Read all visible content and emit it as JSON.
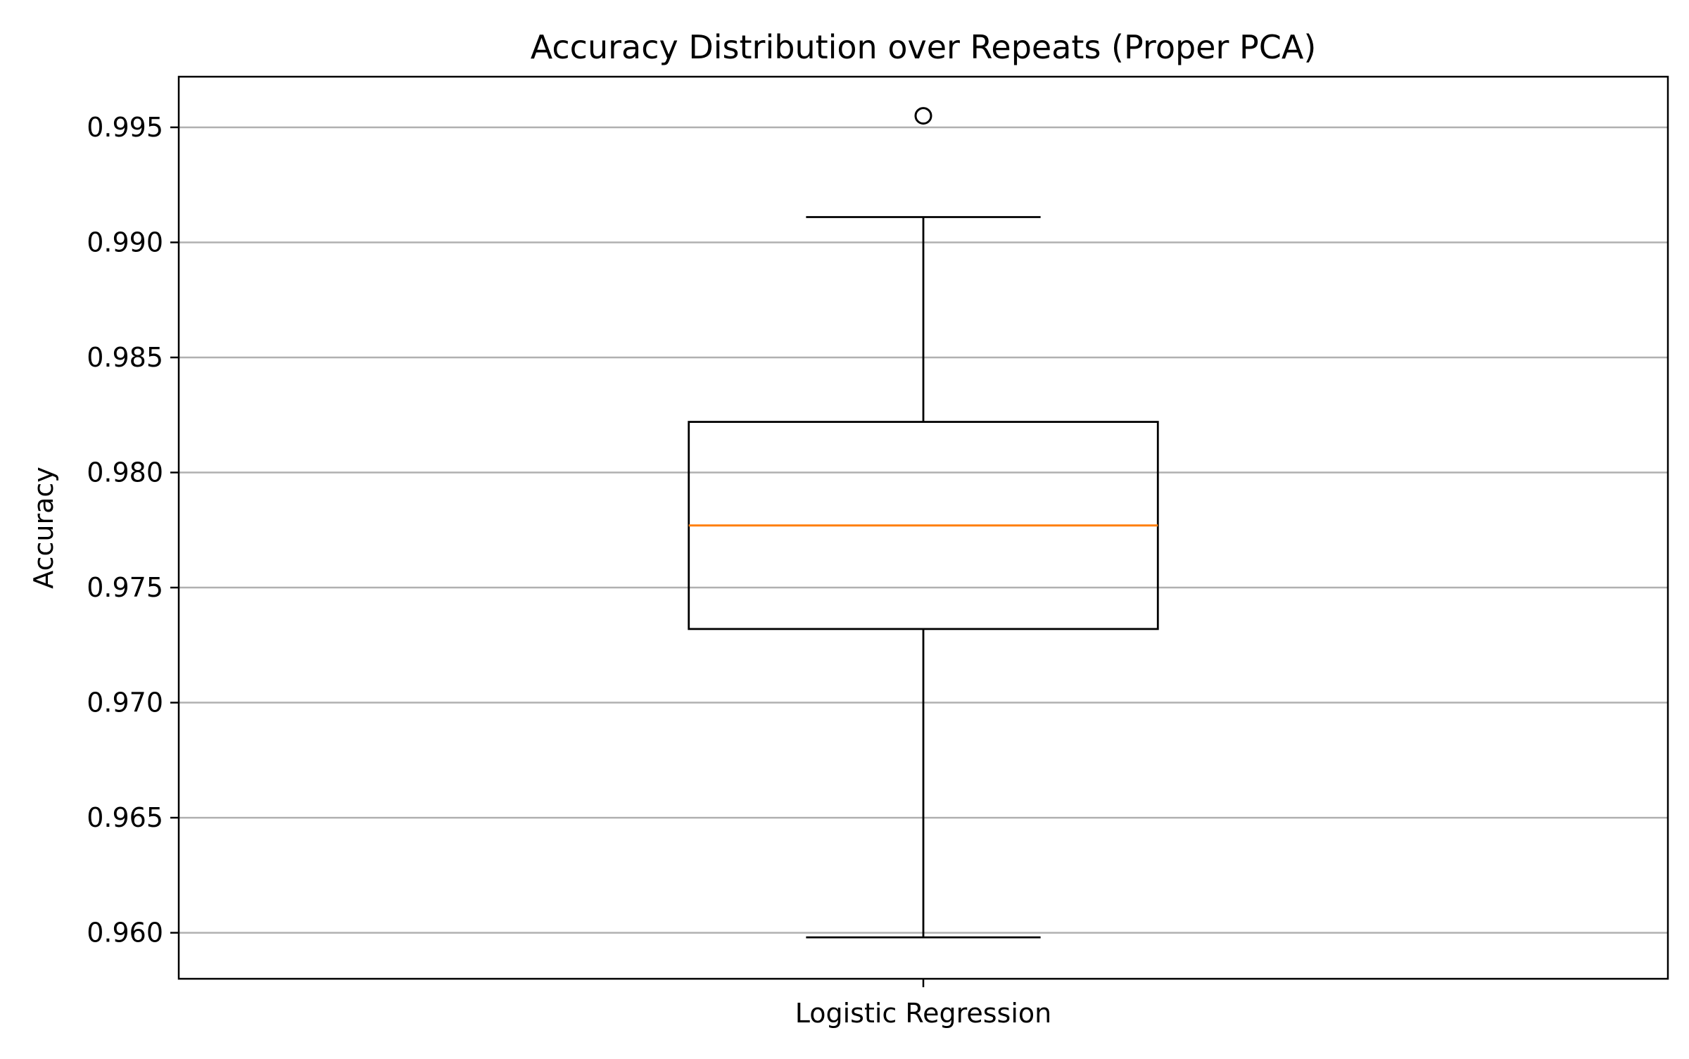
{
  "chart_data": {
    "type": "box",
    "title": "Accuracy Distribution over Repeats (Proper PCA)",
    "xlabel": "",
    "ylabel": "Accuracy",
    "ylim": [
      0.958,
      0.9972
    ],
    "yticks": [
      0.96,
      0.965,
      0.97,
      0.975,
      0.98,
      0.985,
      0.99,
      0.995
    ],
    "ytick_labels": [
      "0.960",
      "0.965",
      "0.970",
      "0.975",
      "0.980",
      "0.985",
      "0.990",
      "0.995"
    ],
    "grid": {
      "y": true,
      "x": false
    },
    "categories": [
      "Logistic Regression"
    ],
    "boxes": [
      {
        "category": "Logistic Regression",
        "whisker_low": 0.9598,
        "q1": 0.9732,
        "median": 0.9777,
        "q3": 0.9822,
        "whisker_high": 0.9911,
        "outliers": [
          0.9955
        ]
      }
    ],
    "colors": {
      "box": "#000000",
      "median": "#ff7f0e",
      "grid": "#b0b0b0",
      "axes": "#000000"
    }
  }
}
